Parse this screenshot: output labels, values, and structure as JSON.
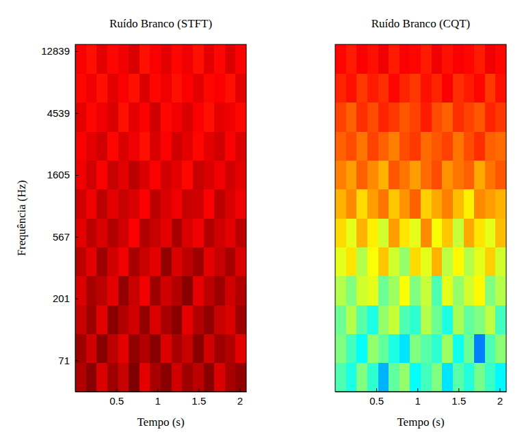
{
  "chart_data": [
    {
      "type": "heatmap",
      "title": "Ruído Branco (STFT)",
      "x_label": "Tempo (s)",
      "y_label": "Frequência (Hz)",
      "xlim": [
        0,
        2.08
      ],
      "xticks": [
        0.5,
        1,
        1.5,
        2
      ],
      "ylim": [
        42,
        14400
      ],
      "yticks": [
        71,
        201,
        567,
        1605,
        4539,
        12839
      ],
      "log": "y",
      "zlim": [
        0,
        1
      ],
      "x_edges": [
        0,
        0.13,
        0.26,
        0.39,
        0.52,
        0.65,
        0.78,
        0.91,
        1.04,
        1.17,
        1.3,
        1.43,
        1.56,
        1.69,
        1.82,
        1.95,
        2.08
      ],
      "y_edges": [
        42,
        68.3,
        111.1,
        180.7,
        294,
        478,
        778,
        1265,
        2058,
        3348,
        5446,
        8858,
        14400
      ],
      "values": [
        [
          0.95,
          0.99,
          0.91,
          0.97,
          0.93,
          1.0,
          0.9,
          0.96,
          0.99,
          0.92,
          0.97,
          0.94,
          0.99,
          0.91,
          0.96,
          0.98
        ],
        [
          0.97,
          0.92,
          0.99,
          0.94,
          0.9,
          0.98,
          0.95,
          0.99,
          0.91,
          0.96,
          0.93,
          0.99,
          0.92,
          0.97,
          0.95,
          0.9
        ],
        [
          0.93,
          0.97,
          0.9,
          0.99,
          0.95,
          0.92,
          0.98,
          0.91,
          0.96,
          0.99,
          0.9,
          0.95,
          0.98,
          0.93,
          0.91,
          0.97
        ],
        [
          0.91,
          0.96,
          0.94,
          0.9,
          0.98,
          0.93,
          0.89,
          0.97,
          0.92,
          0.95,
          0.99,
          0.9,
          0.94,
          0.97,
          0.92,
          0.95
        ],
        [
          0.94,
          0.9,
          0.97,
          0.92,
          0.89,
          0.96,
          0.93,
          0.9,
          0.98,
          0.91,
          0.94,
          0.97,
          0.9,
          0.93,
          0.96,
          0.91
        ],
        [
          0.9,
          0.94,
          0.91,
          0.95,
          0.92,
          0.88,
          0.95,
          0.93,
          0.9,
          0.96,
          0.91,
          0.89,
          0.95,
          0.92,
          0.9,
          0.94
        ],
        [
          0.92,
          0.89,
          0.94,
          0.9,
          0.93,
          0.91,
          0.88,
          0.94,
          0.91,
          0.89,
          0.93,
          0.92,
          0.88,
          0.94,
          0.91,
          0.89
        ],
        [
          0.89,
          0.92,
          0.88,
          0.93,
          0.9,
          0.94,
          0.91,
          0.88,
          0.92,
          0.9,
          0.87,
          0.93,
          0.91,
          0.89,
          0.92,
          0.9
        ],
        [
          0.88,
          0.9,
          0.92,
          0.87,
          0.91,
          0.89,
          0.86,
          0.91,
          0.88,
          0.92,
          0.9,
          0.87,
          0.9,
          0.92,
          0.88,
          0.91
        ],
        [
          0.9,
          0.87,
          0.89,
          0.91,
          0.86,
          0.9,
          0.88,
          0.92,
          0.87,
          0.89,
          0.91,
          0.88,
          0.86,
          0.9,
          0.89,
          0.87
        ],
        [
          0.87,
          0.89,
          0.86,
          0.9,
          0.88,
          0.86,
          0.91,
          0.87,
          0.89,
          0.86,
          0.88,
          0.9,
          0.87,
          0.88,
          0.86,
          0.9
        ],
        [
          0.88,
          0.86,
          0.9,
          0.87,
          0.89,
          0.91,
          0.86,
          0.88,
          0.9,
          0.87,
          0.89,
          0.86,
          0.9,
          0.87,
          0.91,
          0.88
        ]
      ]
    },
    {
      "type": "heatmap",
      "title": "Ruído Branco (CQT)",
      "x_label": "Tempo (s)",
      "xlim": [
        0,
        2.08
      ],
      "xticks": [
        0.5,
        1,
        1.5,
        2
      ],
      "ylim": [
        42,
        14400
      ],
      "log": "y",
      "tick_labels": "x",
      "zlim": [
        0,
        1
      ],
      "x_edges": [
        0,
        0.13,
        0.26,
        0.39,
        0.52,
        0.65,
        0.78,
        0.91,
        1.04,
        1.17,
        1.3,
        1.43,
        1.56,
        1.69,
        1.82,
        1.95,
        2.08
      ],
      "y_edges": [
        42,
        68.3,
        111.1,
        180.7,
        294,
        478,
        778,
        1265,
        2058,
        3348,
        5446,
        8858,
        14400
      ],
      "values": [
        [
          0.45,
          0.4,
          0.5,
          0.42,
          0.3,
          0.47,
          0.52,
          0.38,
          0.44,
          0.5,
          0.35,
          0.46,
          0.41,
          0.49,
          0.43,
          0.37
        ],
        [
          0.5,
          0.44,
          0.38,
          0.52,
          0.47,
          0.4,
          0.35,
          0.5,
          0.46,
          0.42,
          0.53,
          0.39,
          0.48,
          0.25,
          0.45,
          0.51
        ],
        [
          0.48,
          0.55,
          0.46,
          0.4,
          0.52,
          0.57,
          0.45,
          0.42,
          0.55,
          0.48,
          0.4,
          0.54,
          0.47,
          0.5,
          0.56,
          0.44
        ],
        [
          0.55,
          0.5,
          0.58,
          0.6,
          0.48,
          0.53,
          0.62,
          0.5,
          0.57,
          0.45,
          0.6,
          0.52,
          0.58,
          0.63,
          0.5,
          0.55
        ],
        [
          0.6,
          0.65,
          0.55,
          0.62,
          0.68,
          0.58,
          0.52,
          0.66,
          0.6,
          0.7,
          0.56,
          0.63,
          0.55,
          0.6,
          0.67,
          0.58
        ],
        [
          0.66,
          0.6,
          0.7,
          0.64,
          0.58,
          0.72,
          0.65,
          0.6,
          0.74,
          0.62,
          0.68,
          0.57,
          0.71,
          0.65,
          0.6,
          0.69
        ],
        [
          0.7,
          0.74,
          0.66,
          0.72,
          0.76,
          0.68,
          0.73,
          0.78,
          0.67,
          0.71,
          0.75,
          0.69,
          0.64,
          0.74,
          0.72,
          0.7
        ],
        [
          0.75,
          0.72,
          0.78,
          0.74,
          0.7,
          0.79,
          0.76,
          0.72,
          0.77,
          0.8,
          0.73,
          0.76,
          0.78,
          0.71,
          0.76,
          0.79
        ],
        [
          0.78,
          0.8,
          0.76,
          0.81,
          0.78,
          0.75,
          0.8,
          0.82,
          0.77,
          0.79,
          0.81,
          0.76,
          0.8,
          0.83,
          0.78,
          0.77
        ],
        [
          0.81,
          0.78,
          0.83,
          0.8,
          0.84,
          0.82,
          0.79,
          0.81,
          0.85,
          0.8,
          0.78,
          0.83,
          0.81,
          0.79,
          0.84,
          0.82
        ],
        [
          0.84,
          0.86,
          0.82,
          0.85,
          0.83,
          0.87,
          0.84,
          0.82,
          0.86,
          0.84,
          0.88,
          0.83,
          0.85,
          0.87,
          0.82,
          0.86
        ],
        [
          0.87,
          0.85,
          0.88,
          0.86,
          0.89,
          0.85,
          0.88,
          0.87,
          0.85,
          0.89,
          0.86,
          0.88,
          0.87,
          0.85,
          0.89,
          0.87
        ]
      ]
    }
  ]
}
